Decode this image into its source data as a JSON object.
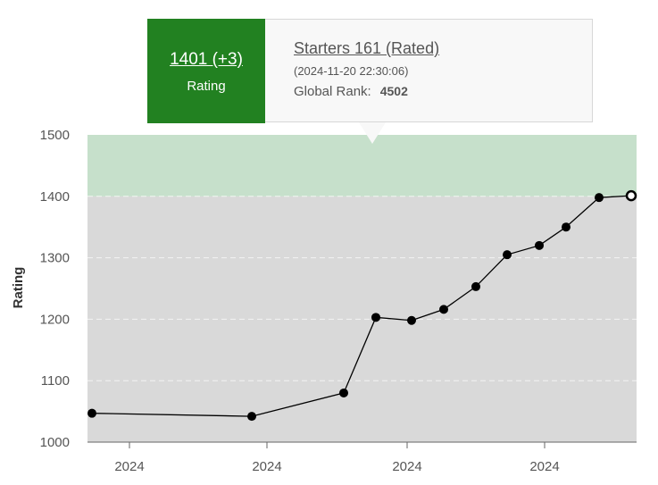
{
  "tooltip": {
    "rating_value": "1401 (+3)",
    "rating_label": "Rating",
    "contest_title": "Starters 161 (Rated)",
    "timestamp": "(2024-11-20 22:30:06)",
    "rank_label": "Global Rank:",
    "rank_value": "4502"
  },
  "colors": {
    "tooltip_accent": "#228121",
    "rating_band_high": "#c6e0cb",
    "rating_band_base": "#d9d9d9",
    "line": "#000000"
  },
  "chart_data": {
    "type": "line",
    "ylabel": "Rating",
    "ylim": [
      1000,
      1500
    ],
    "yticks": [
      1000,
      1100,
      1200,
      1300,
      1400,
      1500
    ],
    "xticks": [
      "2024",
      "2024",
      "2024",
      "2024"
    ],
    "bands": [
      {
        "from": 1000,
        "to": 1400,
        "color": "#d9d9d9"
      },
      {
        "from": 1400,
        "to": 1500,
        "color": "#c6e0cb"
      }
    ],
    "series": [
      {
        "values": [
          1047,
          1042,
          1080,
          1203,
          1198,
          1216,
          1253,
          1305,
          1320,
          1350,
          1398,
          1401
        ],
        "highlighted_index": 11
      }
    ]
  }
}
